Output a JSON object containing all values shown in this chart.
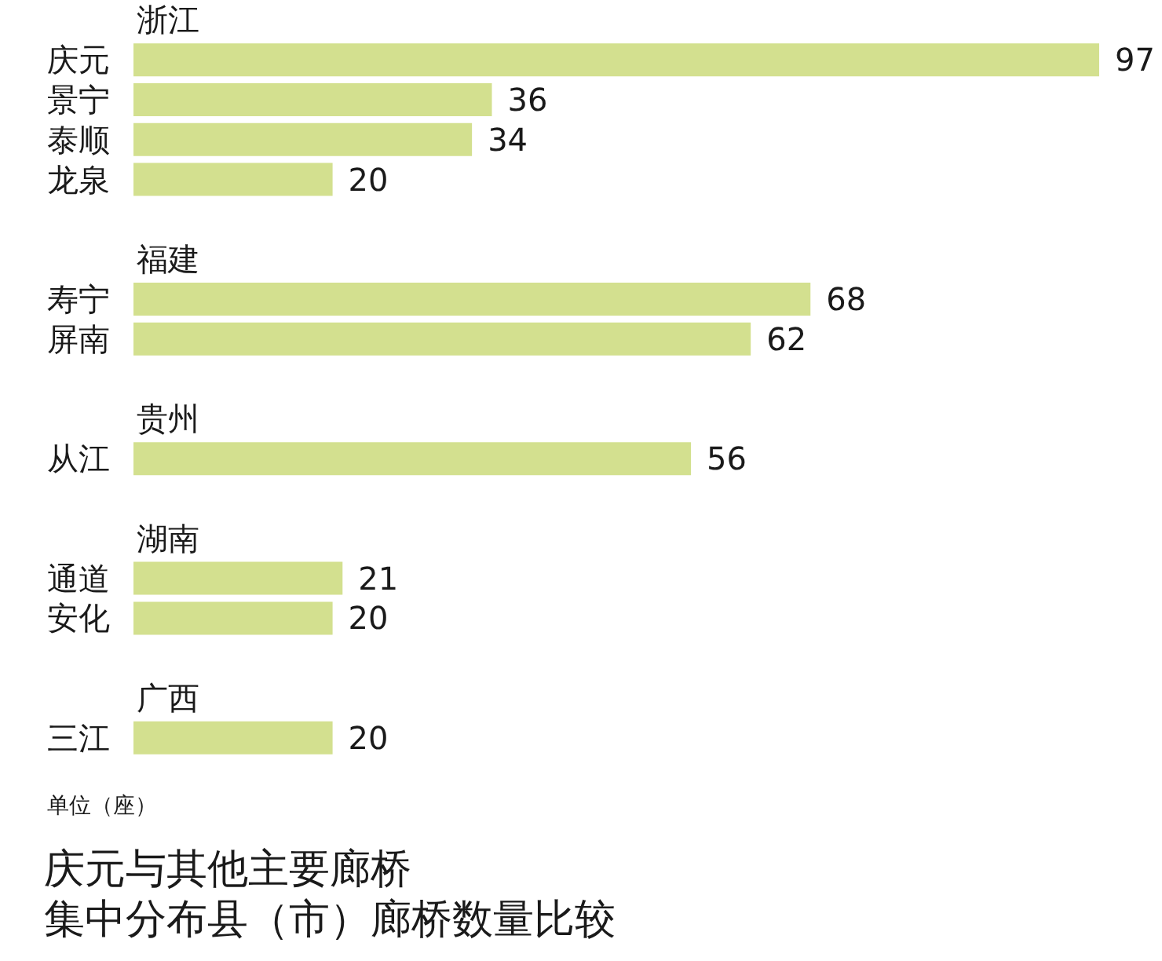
{
  "chart_data": {
    "type": "bar",
    "orientation": "horizontal",
    "title": "庆元与其他主要廊桥",
    "subtitle": "集中分布县（市）廊桥数量比较",
    "categories": [
      "浙江",
      "庆元",
      "景宁",
      "泰顺",
      "龙泉",
      "福建",
      "寿宁",
      "屏南",
      "贵州",
      "从江",
      "湖南",
      "通道",
      "安化",
      "广西",
      "三江"
    ],
    "values": [
      null,
      97,
      36,
      34,
      20,
      null,
      68,
      62,
      null,
      56,
      null,
      21,
      20,
      null,
      20
    ],
    "color": "#d3e08f",
    "data_labels": true,
    "annotations": [
      "单位（座）"
    ]
  }
}
